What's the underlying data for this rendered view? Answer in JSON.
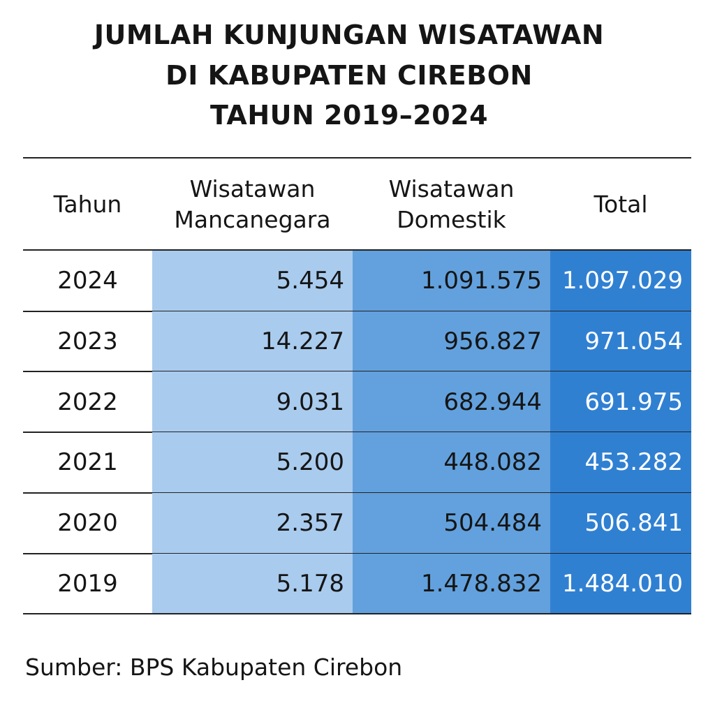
{
  "header": {
    "title": [
      "JUMLAH KUNJUNGAN WISATAWAN",
      "DI KABUPATEN CIREBON",
      "TAHUN 2019–2024"
    ]
  },
  "table": {
    "columns": [
      [
        "Tahun"
      ],
      [
        "Wisatawan",
        "Mancanegara"
      ],
      [
        "Wisatawan",
        "Domestik"
      ],
      [
        "Total"
      ]
    ],
    "rows": [
      [
        "2024",
        "5.454",
        "1.091.575",
        "1.097.029"
      ],
      [
        "2023",
        "14.227",
        "956.827",
        "971.054"
      ],
      [
        "2022",
        "9.031",
        "682.944",
        "691.975"
      ],
      [
        "2021",
        "5.200",
        "448.082",
        "453.282"
      ],
      [
        "2020",
        "2.357",
        "504.484",
        "506.841"
      ],
      [
        "2019",
        "5.178",
        "1.478.832",
        "1.484.010"
      ]
    ]
  },
  "footer": {
    "source": "Sumber: BPS Kabupaten Cirebon"
  }
}
